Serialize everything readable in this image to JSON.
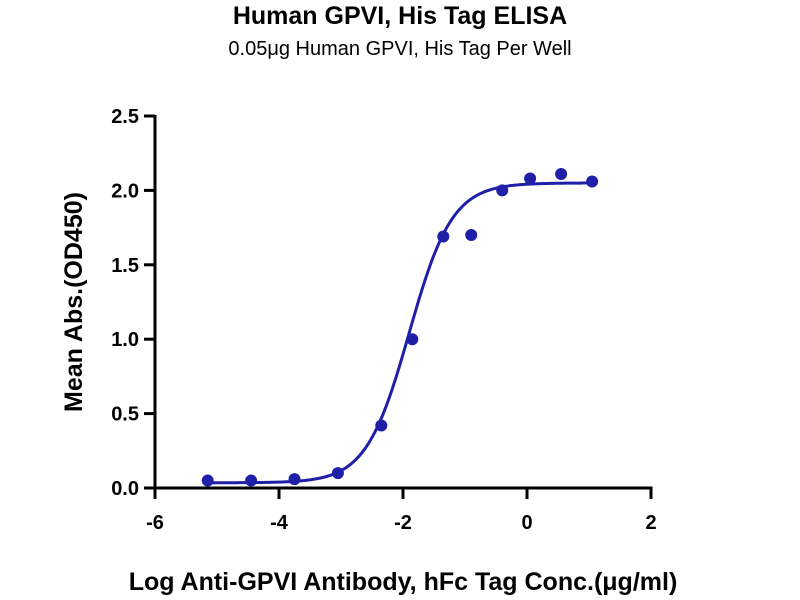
{
  "chart_data": {
    "type": "scatter",
    "title": "Human GPVI, His Tag ELISA",
    "subtitle": "0.05μg Human GPVI, His Tag Per Well",
    "xlabel": "Log Anti-GPVI Antibody, hFc Tag Conc.(μg/ml)",
    "ylabel": "Mean Abs.(OD450)",
    "xlim": [
      -6,
      2
    ],
    "ylim": [
      0,
      2.5
    ],
    "x_ticks": [
      -6,
      -4,
      -2,
      0,
      2
    ],
    "x_tick_labels": [
      "-6",
      "-4",
      "-2",
      "0",
      "2"
    ],
    "y_ticks": [
      0,
      0.5,
      1,
      1.5,
      2,
      2.5
    ],
    "y_tick_labels": [
      "0.0",
      "0.5",
      "1.0",
      "1.5",
      "2.0",
      "2.5"
    ],
    "grid": false,
    "legend": "none",
    "series": [
      {
        "x": [
          -5.15,
          -4.45,
          -3.75,
          -3.05,
          -2.35,
          -1.85,
          -1.35,
          -0.9,
          -0.4,
          0.05,
          0.55,
          1.05
        ],
        "y": [
          0.05,
          0.05,
          0.06,
          0.1,
          0.42,
          1.0,
          1.69,
          1.7,
          2.0,
          2.08,
          2.11,
          2.06
        ],
        "color": "#1f1fa8"
      }
    ],
    "fit_curve": {
      "model": "four-parameter logistic",
      "bottom": 0.035,
      "top": 2.05,
      "ec50_log": -1.9,
      "hill": 1.25,
      "x_range": [
        -5.15,
        1.05
      ],
      "color": "#1f1fa8"
    }
  }
}
